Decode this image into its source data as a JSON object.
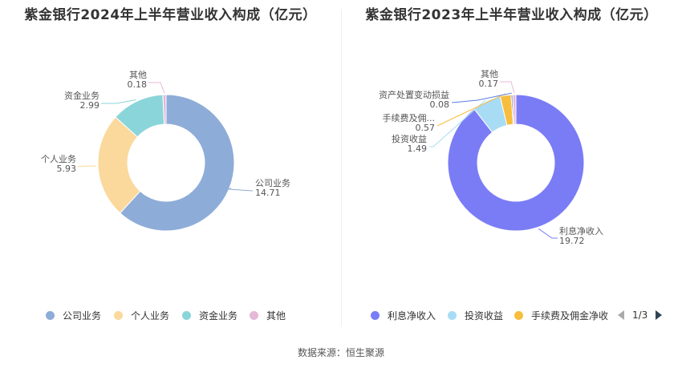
{
  "chart_data": [
    {
      "type": "pie",
      "title": "紫金银行2024年上半年营业收入构成（亿元）",
      "categories": [
        "公司业务",
        "个人业务",
        "资金业务",
        "其他"
      ],
      "values": [
        14.71,
        5.93,
        2.99,
        0.18
      ],
      "colors": [
        "#8eacd8",
        "#fbd89c",
        "#8ad5da",
        "#e5b8d7"
      ],
      "slice_labels": [
        {
          "name": "公司业务",
          "value": "14.71"
        },
        {
          "name": "个人业务",
          "value": "5.93"
        },
        {
          "name": "资金业务",
          "value": "2.99"
        },
        {
          "name": "其他",
          "value": "0.18"
        }
      ],
      "legend": [
        "公司业务",
        "个人业务",
        "资金业务",
        "其他"
      ],
      "legend_position": "bottom"
    },
    {
      "type": "pie",
      "title": "紫金银行2023年上半年营业收入构成（亿元）",
      "categories": [
        "利息净收入",
        "投资收益",
        "手续费及佣金净收入",
        "资产处置变动损益",
        "其他"
      ],
      "values": [
        19.72,
        1.49,
        0.57,
        0.08,
        0.17
      ],
      "colors": [
        "#7a7cf5",
        "#a8dcf5",
        "#f7bd3c",
        "#5b7fe0",
        "#e5b8d7"
      ],
      "slice_labels": [
        {
          "name": "利息净收入",
          "value": "19.72"
        },
        {
          "name": "投资收益",
          "value": "1.49"
        },
        {
          "name": "手续费及佣...",
          "value": "0.57"
        },
        {
          "name": "资产处置变动损益",
          "value": "0.08"
        },
        {
          "name": "其他",
          "value": "0.17"
        }
      ],
      "legend": [
        "利息净收入",
        "投资收益",
        "手续费及佣金净收"
      ],
      "legend_position": "bottom",
      "legend_page": "1/3"
    }
  ],
  "source_text": "数据来源：恒生聚源"
}
